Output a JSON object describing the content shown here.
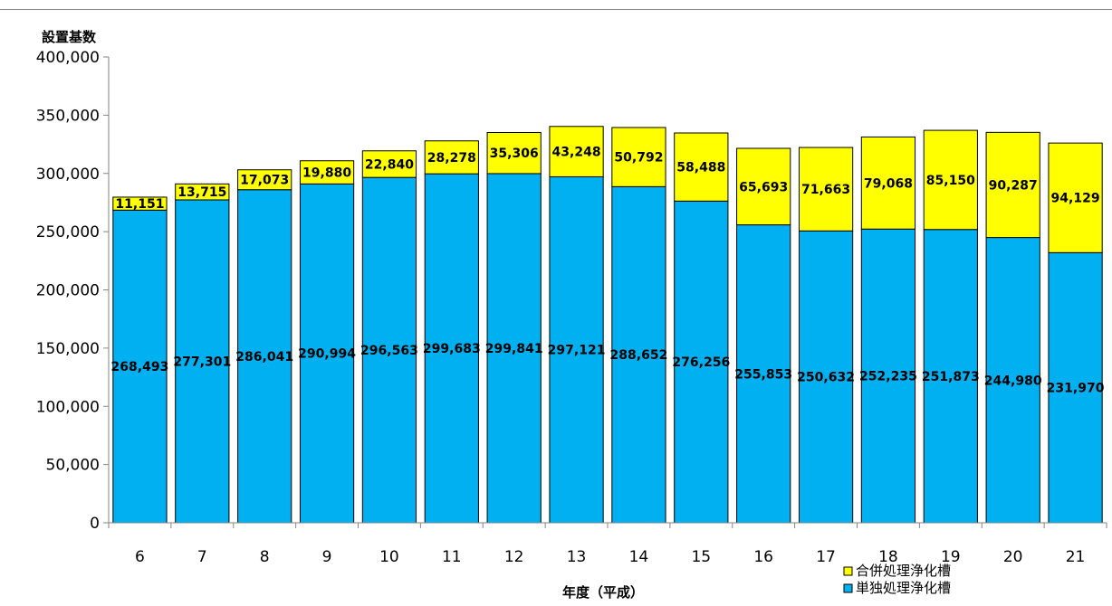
{
  "chart_data": {
    "type": "bar",
    "stacked": true,
    "ylabel": "設置基数",
    "xlabel": "年度（平成）",
    "ylim": [
      0,
      400000
    ],
    "yticks": [
      0,
      50000,
      100000,
      150000,
      200000,
      250000,
      300000,
      350000,
      400000
    ],
    "ytick_labels": [
      "0",
      "50,000",
      "100,000",
      "150,000",
      "200,000",
      "250,000",
      "300,000",
      "350,000",
      "400,000"
    ],
    "categories": [
      "6",
      "7",
      "8",
      "9",
      "10",
      "11",
      "12",
      "13",
      "14",
      "15",
      "16",
      "17",
      "18",
      "19",
      "20",
      "21"
    ],
    "series": [
      {
        "name": "単独処理浄化槽",
        "color": "#00B0F0",
        "values": [
          268493,
          277301,
          286041,
          290994,
          296563,
          299683,
          299841,
          297121,
          288652,
          276256,
          255853,
          250632,
          252235,
          251873,
          244980,
          231970
        ],
        "labels": [
          "268,493",
          "277,301",
          "286,041",
          "290,994",
          "296,563",
          "299,683",
          "299,841",
          "297,121",
          "288,652",
          "276,256",
          "255,853",
          "250,632",
          "252,235",
          "251,873",
          "244,980",
          "231,970"
        ]
      },
      {
        "name": "合併処理浄化槽",
        "color": "#FFFF00",
        "values": [
          11151,
          13715,
          17073,
          19880,
          22840,
          28278,
          35306,
          43248,
          50792,
          58488,
          65693,
          71663,
          79068,
          85150,
          90287,
          94129
        ],
        "labels": [
          "11,151",
          "13,715",
          "17,073",
          "19,880",
          "22,840",
          "28,278",
          "35,306",
          "43,248",
          "50,792",
          "58,488",
          "65,693",
          "71,663",
          "79,068",
          "85,150",
          "90,287",
          "94,129"
        ]
      }
    ],
    "legend": {
      "placement": "bottom-right",
      "order": [
        "合併処理浄化槽",
        "単独処理浄化槽"
      ]
    },
    "grid": false
  }
}
